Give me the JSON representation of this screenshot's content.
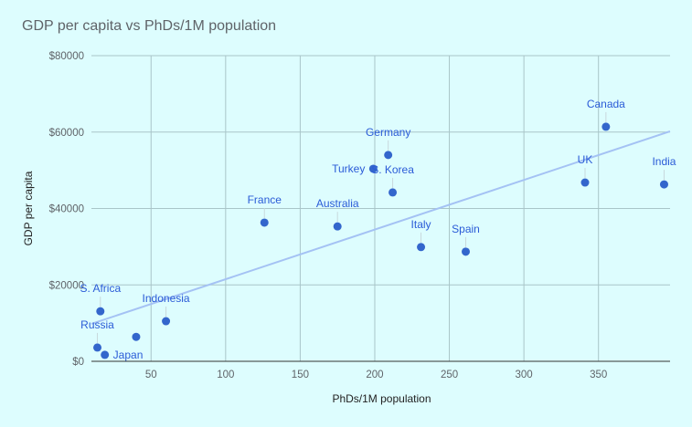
{
  "chart_data": {
    "type": "scatter",
    "title": "GDP per capita vs PhDs/1M population",
    "xlabel": "PhDs/1M population",
    "ylabel": "GDP per capita",
    "xlim": [
      10,
      398
    ],
    "ylim": [
      0,
      80000
    ],
    "x_ticks": [
      "50",
      "100",
      "150",
      "200",
      "250",
      "300",
      "350"
    ],
    "x_tick_values": [
      50,
      100,
      150,
      200,
      250,
      300,
      350
    ],
    "y_ticks": [
      "$0",
      "$20000",
      "$40000",
      "$60000",
      "$80000"
    ],
    "y_tick_values": [
      0,
      20000,
      40000,
      60000,
      80000
    ],
    "grid": true,
    "trendline": {
      "type": "linear",
      "start": [
        10,
        9800
      ],
      "end": [
        398,
        60200
      ]
    },
    "point_color": "#3366cc",
    "trendline_color": "#a4c2f4",
    "points": [
      {
        "label": "S. Africa",
        "x": 16,
        "y": 13100
      },
      {
        "label": "Russia",
        "x": 14,
        "y": 3600
      },
      {
        "label": "Japan",
        "x": 19,
        "y": 1700
      },
      {
        "label": "",
        "x": 40,
        "y": 6400
      },
      {
        "label": "Indonesia",
        "x": 60,
        "y": 10500
      },
      {
        "label": "France",
        "x": 126,
        "y": 36300
      },
      {
        "label": "Australia",
        "x": 175,
        "y": 35300
      },
      {
        "label": "Turkey",
        "x": 199,
        "y": 50400
      },
      {
        "label": "Germany",
        "x": 209,
        "y": 54000
      },
      {
        "label": "S. Korea",
        "x": 212,
        "y": 44200
      },
      {
        "label": "Italy",
        "x": 231,
        "y": 29900
      },
      {
        "label": "Spain",
        "x": 261,
        "y": 28700
      },
      {
        "label": "UK",
        "x": 341,
        "y": 46800
      },
      {
        "label": "Canada",
        "x": 355,
        "y": 61400
      },
      {
        "label": "India",
        "x": 394,
        "y": 46300
      }
    ]
  }
}
